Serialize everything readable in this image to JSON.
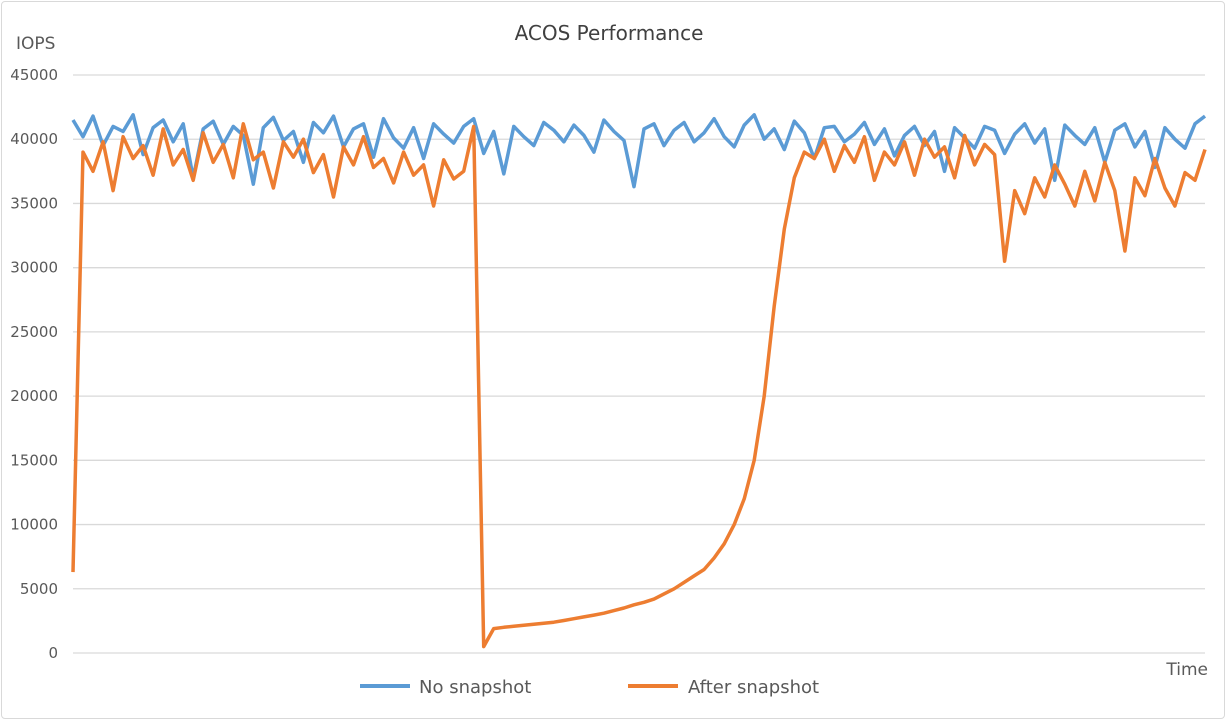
{
  "chart_data": {
    "type": "line",
    "title": "ACOS Performance",
    "xlabel": "Time",
    "ylabel": "IOPS",
    "ylim": [
      0,
      45000
    ],
    "yticks": [
      "0",
      "5000",
      "10000",
      "15000",
      "20000",
      "25000",
      "30000",
      "35000",
      "40000",
      "45000"
    ],
    "grid": true,
    "legend_position": "bottom",
    "series": [
      {
        "name": "No snapshot",
        "color": "#5B9BD5",
        "values": [
          41500,
          40200,
          41800,
          39500,
          41000,
          40600,
          41900,
          38800,
          40900,
          41500,
          39800,
          41200,
          37000,
          40800,
          41400,
          39600,
          41000,
          40300,
          36500,
          40900,
          41700,
          39900,
          40600,
          38200,
          41300,
          40500,
          41800,
          39400,
          40800,
          41200,
          38600,
          41600,
          40100,
          39300,
          40900,
          38500,
          41200,
          40400,
          39700,
          41000,
          41600,
          38900,
          40600,
          37300,
          41000,
          40200,
          39500,
          41300,
          40700,
          39800,
          41100,
          40300,
          39000,
          41500,
          40600,
          39900,
          36300,
          40800,
          41200,
          39500,
          40700,
          41300,
          39800,
          40500,
          41600,
          40200,
          39400,
          41100,
          41900,
          40000,
          40800,
          39200,
          41400,
          40500,
          38500,
          40900,
          41000,
          39800,
          40400,
          41300,
          39600,
          40800,
          38700,
          40300,
          41000,
          39500,
          40600,
          37500,
          40900,
          40100,
          39300,
          41000,
          40700,
          38900,
          40400,
          41200,
          39700,
          40800,
          36800,
          41100,
          40300,
          39600,
          40900,
          38200,
          40700,
          41200,
          39400,
          40600,
          37800,
          40900,
          40000,
          39300,
          41200,
          41800
        ]
      },
      {
        "name": "After snapshot",
        "color": "#ED7D31",
        "values": [
          6300,
          39000,
          37500,
          39800,
          36000,
          40200,
          38500,
          39500,
          37200,
          40800,
          38000,
          39200,
          36800,
          40500,
          38200,
          39600,
          37000,
          41200,
          38400,
          39000,
          36200,
          39800,
          38600,
          40000,
          37400,
          38800,
          35500,
          39400,
          38000,
          40200,
          37800,
          38500,
          36600,
          39000,
          37200,
          38000,
          34800,
          38400,
          36900,
          37500,
          41000,
          500,
          1900,
          2000,
          2080,
          2160,
          2240,
          2320,
          2400,
          2530,
          2670,
          2810,
          2950,
          3100,
          3300,
          3500,
          3750,
          3950,
          4200,
          4600,
          5000,
          5500,
          6000,
          6500,
          7400,
          8500,
          10000,
          12000,
          15000,
          20000,
          27000,
          33000,
          37000,
          39000,
          38500,
          40000,
          37500,
          39500,
          38200,
          40200,
          36800,
          39000,
          38000,
          39800,
          37200,
          40000,
          38600,
          39400,
          37000,
          40300,
          38000,
          39600,
          38800,
          30500,
          36000,
          34200,
          37000,
          35500,
          38000,
          36500,
          34800,
          37500,
          35200,
          38200,
          36000,
          31300,
          37000,
          35600,
          38500,
          36200,
          34800,
          37400,
          36800,
          39200
        ]
      }
    ]
  }
}
